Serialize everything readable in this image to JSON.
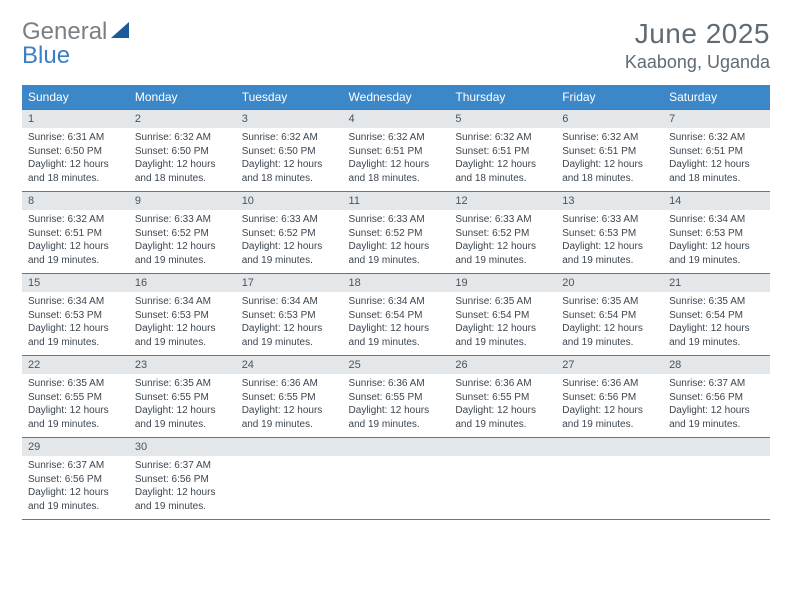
{
  "brand": {
    "word1": "General",
    "word2": "Blue",
    "word1_color": "#7a7f85",
    "word2_color": "#3b7fc3",
    "logo_fill": "#1c5a99"
  },
  "title": "June 2025",
  "location": "Kaabong, Uganda",
  "colors": {
    "header_bg": "#3b87c8",
    "header_fg": "#ffffff",
    "daynum_bg": "#e4e7ea",
    "daynum_fg": "#4a545d",
    "text": "#3c4650",
    "rule": "#3b7fc3",
    "title_color": "#5f6b75"
  },
  "typography": {
    "title_fontsize": 28,
    "location_fontsize": 18,
    "dow_fontsize": 12,
    "daynum_fontsize": 11,
    "body_fontsize": 10
  },
  "day_headers": [
    "Sunday",
    "Monday",
    "Tuesday",
    "Wednesday",
    "Thursday",
    "Friday",
    "Saturday"
  ],
  "weeks": [
    [
      {
        "n": "1",
        "sunrise": "Sunrise: 6:31 AM",
        "sunset": "Sunset: 6:50 PM",
        "day1": "Daylight: 12 hours",
        "day2": "and 18 minutes."
      },
      {
        "n": "2",
        "sunrise": "Sunrise: 6:32 AM",
        "sunset": "Sunset: 6:50 PM",
        "day1": "Daylight: 12 hours",
        "day2": "and 18 minutes."
      },
      {
        "n": "3",
        "sunrise": "Sunrise: 6:32 AM",
        "sunset": "Sunset: 6:50 PM",
        "day1": "Daylight: 12 hours",
        "day2": "and 18 minutes."
      },
      {
        "n": "4",
        "sunrise": "Sunrise: 6:32 AM",
        "sunset": "Sunset: 6:51 PM",
        "day1": "Daylight: 12 hours",
        "day2": "and 18 minutes."
      },
      {
        "n": "5",
        "sunrise": "Sunrise: 6:32 AM",
        "sunset": "Sunset: 6:51 PM",
        "day1": "Daylight: 12 hours",
        "day2": "and 18 minutes."
      },
      {
        "n": "6",
        "sunrise": "Sunrise: 6:32 AM",
        "sunset": "Sunset: 6:51 PM",
        "day1": "Daylight: 12 hours",
        "day2": "and 18 minutes."
      },
      {
        "n": "7",
        "sunrise": "Sunrise: 6:32 AM",
        "sunset": "Sunset: 6:51 PM",
        "day1": "Daylight: 12 hours",
        "day2": "and 18 minutes."
      }
    ],
    [
      {
        "n": "8",
        "sunrise": "Sunrise: 6:32 AM",
        "sunset": "Sunset: 6:51 PM",
        "day1": "Daylight: 12 hours",
        "day2": "and 19 minutes."
      },
      {
        "n": "9",
        "sunrise": "Sunrise: 6:33 AM",
        "sunset": "Sunset: 6:52 PM",
        "day1": "Daylight: 12 hours",
        "day2": "and 19 minutes."
      },
      {
        "n": "10",
        "sunrise": "Sunrise: 6:33 AM",
        "sunset": "Sunset: 6:52 PM",
        "day1": "Daylight: 12 hours",
        "day2": "and 19 minutes."
      },
      {
        "n": "11",
        "sunrise": "Sunrise: 6:33 AM",
        "sunset": "Sunset: 6:52 PM",
        "day1": "Daylight: 12 hours",
        "day2": "and 19 minutes."
      },
      {
        "n": "12",
        "sunrise": "Sunrise: 6:33 AM",
        "sunset": "Sunset: 6:52 PM",
        "day1": "Daylight: 12 hours",
        "day2": "and 19 minutes."
      },
      {
        "n": "13",
        "sunrise": "Sunrise: 6:33 AM",
        "sunset": "Sunset: 6:53 PM",
        "day1": "Daylight: 12 hours",
        "day2": "and 19 minutes."
      },
      {
        "n": "14",
        "sunrise": "Sunrise: 6:34 AM",
        "sunset": "Sunset: 6:53 PM",
        "day1": "Daylight: 12 hours",
        "day2": "and 19 minutes."
      }
    ],
    [
      {
        "n": "15",
        "sunrise": "Sunrise: 6:34 AM",
        "sunset": "Sunset: 6:53 PM",
        "day1": "Daylight: 12 hours",
        "day2": "and 19 minutes."
      },
      {
        "n": "16",
        "sunrise": "Sunrise: 6:34 AM",
        "sunset": "Sunset: 6:53 PM",
        "day1": "Daylight: 12 hours",
        "day2": "and 19 minutes."
      },
      {
        "n": "17",
        "sunrise": "Sunrise: 6:34 AM",
        "sunset": "Sunset: 6:53 PM",
        "day1": "Daylight: 12 hours",
        "day2": "and 19 minutes."
      },
      {
        "n": "18",
        "sunrise": "Sunrise: 6:34 AM",
        "sunset": "Sunset: 6:54 PM",
        "day1": "Daylight: 12 hours",
        "day2": "and 19 minutes."
      },
      {
        "n": "19",
        "sunrise": "Sunrise: 6:35 AM",
        "sunset": "Sunset: 6:54 PM",
        "day1": "Daylight: 12 hours",
        "day2": "and 19 minutes."
      },
      {
        "n": "20",
        "sunrise": "Sunrise: 6:35 AM",
        "sunset": "Sunset: 6:54 PM",
        "day1": "Daylight: 12 hours",
        "day2": "and 19 minutes."
      },
      {
        "n": "21",
        "sunrise": "Sunrise: 6:35 AM",
        "sunset": "Sunset: 6:54 PM",
        "day1": "Daylight: 12 hours",
        "day2": "and 19 minutes."
      }
    ],
    [
      {
        "n": "22",
        "sunrise": "Sunrise: 6:35 AM",
        "sunset": "Sunset: 6:55 PM",
        "day1": "Daylight: 12 hours",
        "day2": "and 19 minutes."
      },
      {
        "n": "23",
        "sunrise": "Sunrise: 6:35 AM",
        "sunset": "Sunset: 6:55 PM",
        "day1": "Daylight: 12 hours",
        "day2": "and 19 minutes."
      },
      {
        "n": "24",
        "sunrise": "Sunrise: 6:36 AM",
        "sunset": "Sunset: 6:55 PM",
        "day1": "Daylight: 12 hours",
        "day2": "and 19 minutes."
      },
      {
        "n": "25",
        "sunrise": "Sunrise: 6:36 AM",
        "sunset": "Sunset: 6:55 PM",
        "day1": "Daylight: 12 hours",
        "day2": "and 19 minutes."
      },
      {
        "n": "26",
        "sunrise": "Sunrise: 6:36 AM",
        "sunset": "Sunset: 6:55 PM",
        "day1": "Daylight: 12 hours",
        "day2": "and 19 minutes."
      },
      {
        "n": "27",
        "sunrise": "Sunrise: 6:36 AM",
        "sunset": "Sunset: 6:56 PM",
        "day1": "Daylight: 12 hours",
        "day2": "and 19 minutes."
      },
      {
        "n": "28",
        "sunrise": "Sunrise: 6:37 AM",
        "sunset": "Sunset: 6:56 PM",
        "day1": "Daylight: 12 hours",
        "day2": "and 19 minutes."
      }
    ],
    [
      {
        "n": "29",
        "sunrise": "Sunrise: 6:37 AM",
        "sunset": "Sunset: 6:56 PM",
        "day1": "Daylight: 12 hours",
        "day2": "and 19 minutes."
      },
      {
        "n": "30",
        "sunrise": "Sunrise: 6:37 AM",
        "sunset": "Sunset: 6:56 PM",
        "day1": "Daylight: 12 hours",
        "day2": "and 19 minutes."
      },
      {
        "n": "",
        "sunrise": "",
        "sunset": "",
        "day1": "",
        "day2": ""
      },
      {
        "n": "",
        "sunrise": "",
        "sunset": "",
        "day1": "",
        "day2": ""
      },
      {
        "n": "",
        "sunrise": "",
        "sunset": "",
        "day1": "",
        "day2": ""
      },
      {
        "n": "",
        "sunrise": "",
        "sunset": "",
        "day1": "",
        "day2": ""
      },
      {
        "n": "",
        "sunrise": "",
        "sunset": "",
        "day1": "",
        "day2": ""
      }
    ]
  ]
}
